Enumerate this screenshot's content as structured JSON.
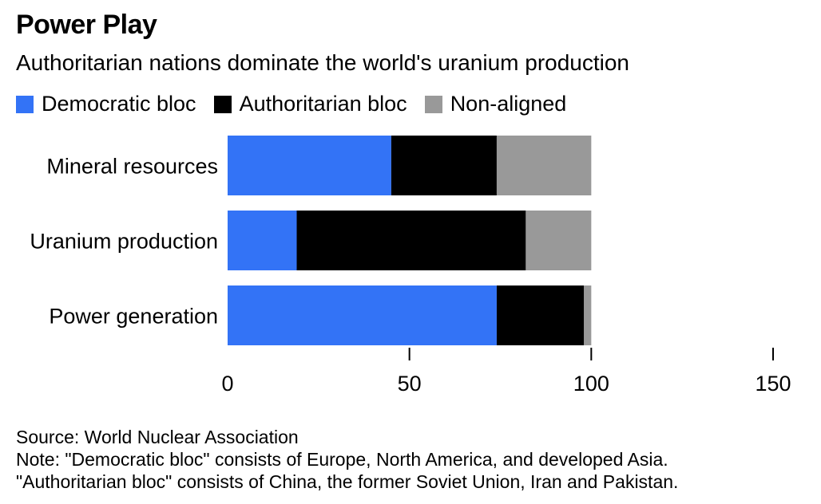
{
  "header": {
    "title": "Power Play",
    "subtitle": "Authoritarian nations dominate the world's uranium production"
  },
  "colors": {
    "democratic": "#3373f6",
    "authoritarian": "#000000",
    "nonaligned": "#999999"
  },
  "chart_data": {
    "type": "bar",
    "orientation": "horizontal",
    "stacked": true,
    "title": "Power Play",
    "subtitle": "Authoritarian nations dominate the world's uranium production",
    "categories": [
      "Mineral resources",
      "Uranium production",
      "Power generation"
    ],
    "series": [
      {
        "name": "Democratic bloc",
        "values": [
          45,
          19,
          74
        ]
      },
      {
        "name": "Authoritarian bloc",
        "values": [
          29,
          63,
          24
        ]
      },
      {
        "name": "Non-aligned",
        "values": [
          26,
          18,
          2
        ]
      }
    ],
    "xlim": [
      0,
      150
    ],
    "xticks": [
      0,
      50,
      100,
      150
    ],
    "legend_position": "top-left",
    "grid": false
  },
  "footer": {
    "source": "Source: World Nuclear Association",
    "note1": "Note: \"Democratic bloc\" consists of Europe, North America, and developed Asia.",
    "note2": "\"Authoritarian bloc\" consists of China, the former Soviet Union, Iran and Pakistan."
  }
}
